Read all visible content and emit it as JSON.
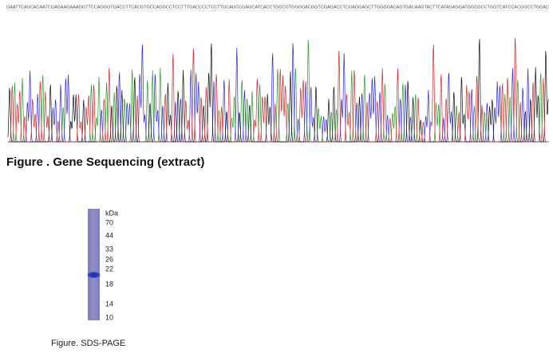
{
  "sequencing": {
    "sequence": "GAATTCAGCACAATCGAGAAGAAAGGTTCCAGGGTGACCTTCACGTGCCAGGCCTCCTTTGACCCCTCCTTGCAGCCGAGCATCACCTGGCGTGGGGACGGTCGAGACCTCGAGGAGCTTGGGGACAGTGACAAGTACTTCATAGAGGATGGCGCCTGGTCATCCACGGCCTGGAC",
    "caption": "Figure . Gene Sequencing (extract)"
  },
  "sds_page": {
    "unit": "kDa",
    "markers": [
      70,
      44,
      33,
      26,
      22,
      18,
      14,
      10
    ],
    "caption": "Figure. SDS-PAGE"
  }
}
